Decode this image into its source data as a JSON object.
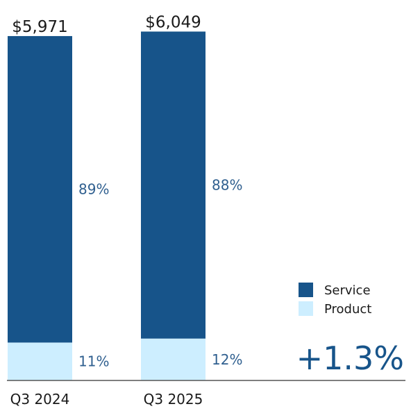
{
  "chart_data": {
    "type": "bar",
    "stacked": true,
    "categories": [
      "Q3 2024",
      "Q3 2025"
    ],
    "totals": [
      5971,
      6049
    ],
    "total_labels": [
      "$5,971",
      "$6,049"
    ],
    "series": [
      {
        "name": "Service",
        "values": [
          5314,
          5323
        ],
        "labels": [
          "89%",
          "88%"
        ],
        "color": "#17548a"
      },
      {
        "name": "Product",
        "values": [
          657,
          726
        ],
        "labels": [
          "11%",
          "12%"
        ],
        "color": "#cdeeff"
      }
    ],
    "legend_position": "bottom-right",
    "annotation": "+1.3%",
    "grid": false,
    "ylim": [
      0,
      6500
    ]
  }
}
